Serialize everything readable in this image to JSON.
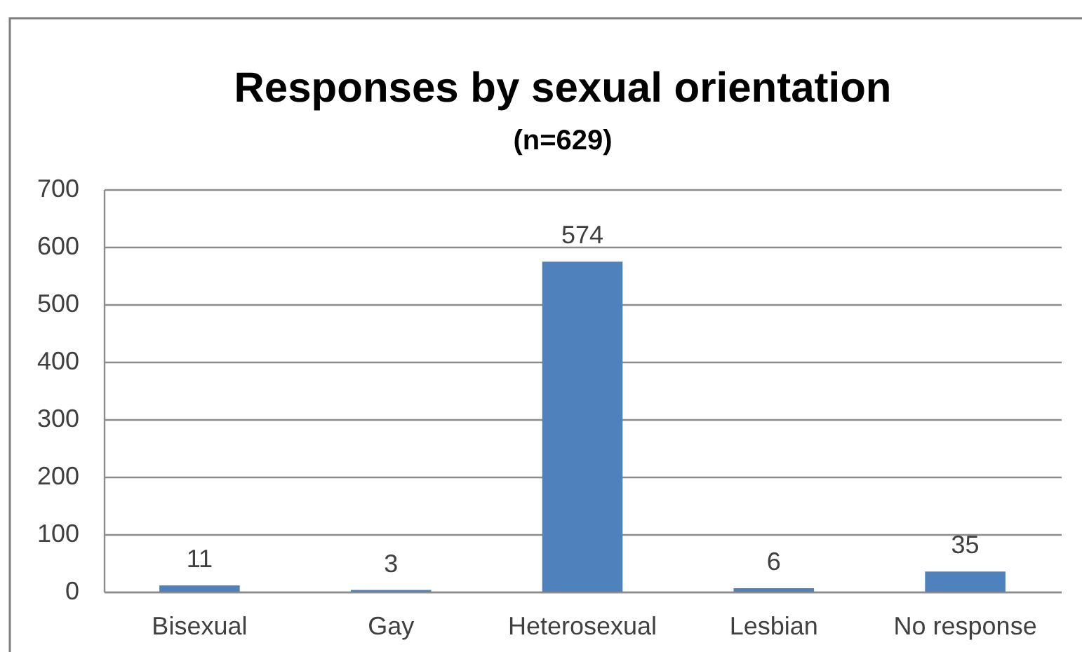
{
  "chart_data": {
    "type": "bar",
    "title": "Responses by sexual orientation",
    "subtitle": "(n=629)",
    "categories": [
      "Bisexual",
      "Gay",
      "Heterosexual",
      "Lesbian",
      "No response"
    ],
    "values": [
      11,
      3,
      574,
      6,
      35
    ],
    "color": "#4f81bd",
    "ylim": [
      0,
      700
    ],
    "yticks": [
      0,
      100,
      200,
      300,
      400,
      500,
      600,
      700
    ],
    "grid": "y",
    "data_labels": true
  }
}
